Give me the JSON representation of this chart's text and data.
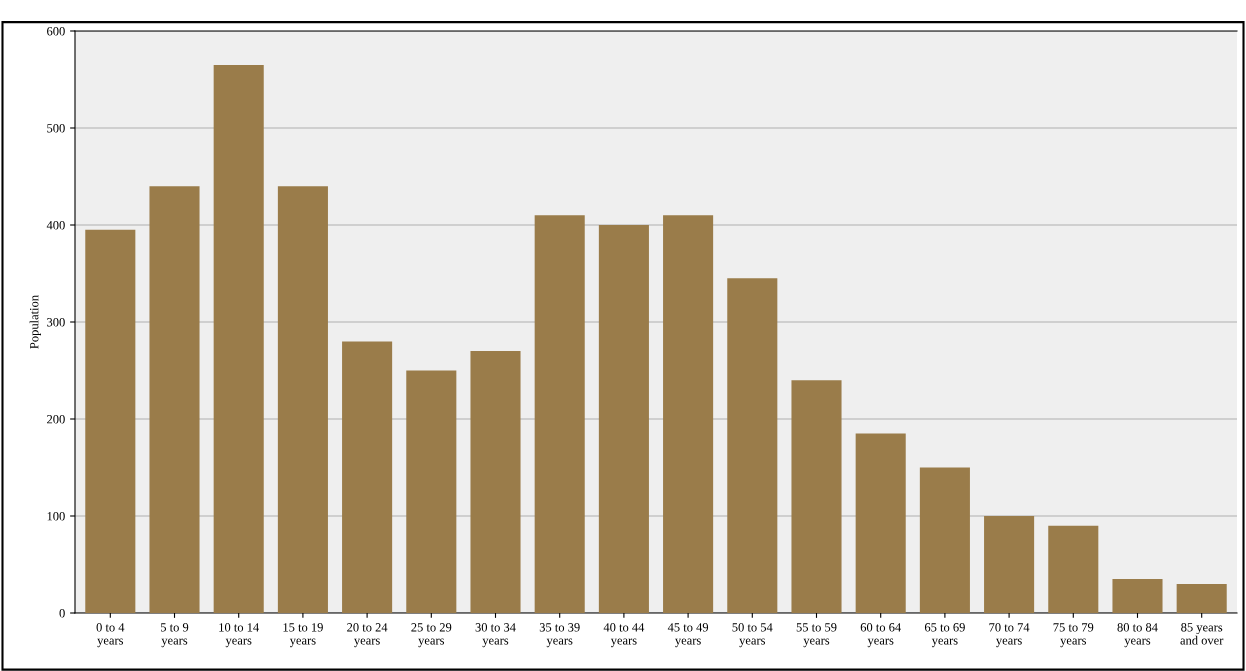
{
  "chart_data": {
    "type": "bar",
    "ylabel": "Population",
    "categories": [
      "0 to 4\nyears",
      "5 to 9\nyears",
      "10 to 14\nyears",
      "15 to 19\nyears",
      "20 to 24\nyears",
      "25 to 29\nyears",
      "30 to 34\nyears",
      "35 to 39\nyears",
      "40 to 44\nyears",
      "45 to 49\nyears",
      "50 to 54\nyears",
      "55 to 59\nyears",
      "60 to 64\nyears",
      "65 to 69\nyears",
      "70 to 74\nyears",
      "75 to 79\nyears",
      "80 to 84\nyears",
      "85 years\nand over"
    ],
    "values": [
      395,
      440,
      565,
      440,
      280,
      250,
      270,
      410,
      400,
      410,
      345,
      240,
      185,
      150,
      100,
      90,
      35,
      30
    ],
    "color": "#9a7c4a",
    "ylim": [
      0,
      600
    ],
    "yticks": [
      0,
      100,
      200,
      300,
      400,
      500,
      600
    ],
    "grid": "y"
  }
}
